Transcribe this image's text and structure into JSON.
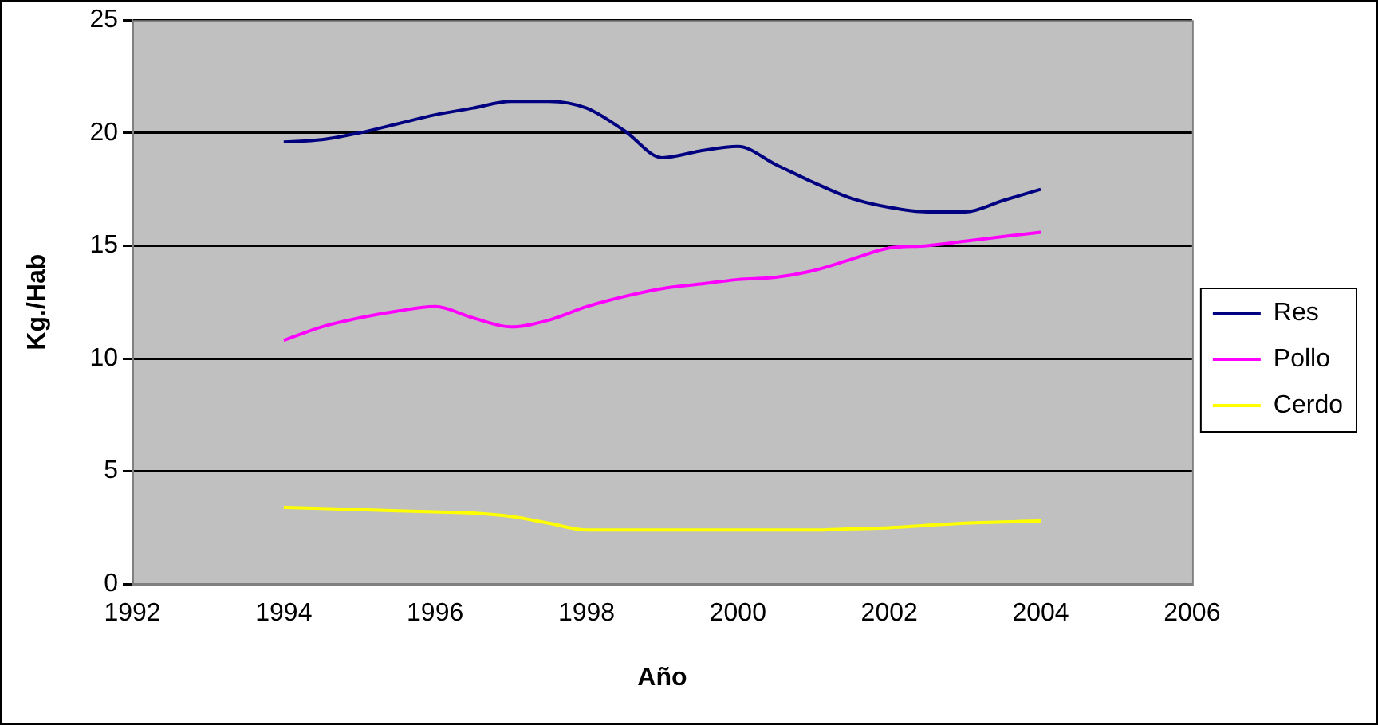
{
  "chart_data": {
    "type": "line",
    "xlabel": "Año",
    "ylabel": "Kg./Hab",
    "x": [
      1994,
      1994.5,
      1995,
      1995.5,
      1996,
      1996.5,
      1997,
      1997.5,
      1998,
      1998.5,
      1999,
      1999.5,
      2000,
      2000.5,
      2001,
      2001.5,
      2002,
      2002.5,
      2003,
      2003.5,
      2004
    ],
    "series": [
      {
        "name": "Res",
        "color": "#000080",
        "values": [
          19.6,
          19.7,
          20.0,
          20.4,
          20.8,
          21.1,
          21.4,
          21.4,
          21.1,
          20.1,
          18.9,
          19.2,
          19.4,
          18.6,
          17.8,
          17.1,
          16.7,
          16.5,
          16.5,
          17.0,
          17.5
        ]
      },
      {
        "name": "Pollo",
        "color": "#ff00ff",
        "values": [
          10.8,
          11.4,
          11.8,
          12.1,
          12.3,
          11.8,
          11.4,
          11.7,
          12.3,
          12.75,
          13.1,
          13.3,
          13.5,
          13.6,
          13.9,
          14.4,
          14.9,
          15.0,
          15.2,
          15.4,
          15.6
        ]
      },
      {
        "name": "Cerdo",
        "color": "#ffff00",
        "values": [
          3.4,
          3.35,
          3.3,
          3.25,
          3.2,
          3.15,
          3.0,
          2.7,
          2.4,
          2.4,
          2.4,
          2.4,
          2.4,
          2.4,
          2.4,
          2.45,
          2.5,
          2.6,
          2.7,
          2.75,
          2.8
        ]
      }
    ],
    "xlim": [
      1992,
      2006
    ],
    "xticks": [
      1992,
      1994,
      1996,
      1998,
      2000,
      2002,
      2004,
      2006
    ],
    "ylim": [
      0,
      25
    ],
    "yticks": [
      0,
      5,
      10,
      15,
      20,
      25
    ],
    "grid": "y",
    "legend": "right",
    "marker": "none",
    "line_style": "solid"
  }
}
